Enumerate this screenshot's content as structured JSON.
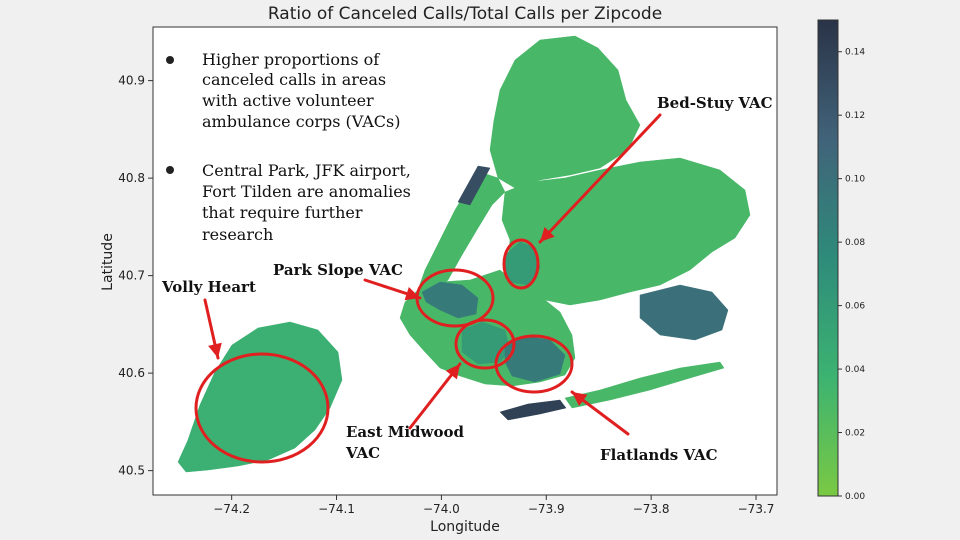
{
  "chart_data": {
    "type": "choropleth",
    "title": "Ratio of Canceled Calls/Total Calls per Zipcode",
    "xlabel": "Longitude",
    "ylabel": "Latitude",
    "xlim": [
      -74.275,
      -73.68
    ],
    "ylim": [
      40.475,
      40.955
    ],
    "x_ticks": [
      "−74.2",
      "−74.1",
      "−74.0",
      "−73.9",
      "−73.8",
      "−73.7"
    ],
    "x_tick_values": [
      -74.2,
      -74.1,
      -74.0,
      -73.9,
      -73.8,
      -73.7
    ],
    "y_ticks": [
      "40.5",
      "40.6",
      "40.7",
      "40.8",
      "40.9"
    ],
    "y_tick_values": [
      40.5,
      40.6,
      40.7,
      40.8,
      40.9
    ],
    "colorbar": {
      "min": 0.0,
      "max": 0.15,
      "ticks": [
        "0.00",
        "0.02",
        "0.04",
        "0.06",
        "0.08",
        "0.10",
        "0.12",
        "0.14"
      ],
      "tick_values": [
        0.0,
        0.02,
        0.04,
        0.06,
        0.08,
        0.1,
        0.12,
        0.14
      ],
      "colors": [
        "#7ac943",
        "#3cb371",
        "#2e8b7a",
        "#41637a",
        "#2a3347"
      ]
    },
    "regions": [
      {
        "id": "staten-island",
        "ratio": 0.04
      },
      {
        "id": "bronx",
        "ratio": 0.03
      },
      {
        "id": "manhattan",
        "ratio": 0.03
      },
      {
        "id": "central-park",
        "ratio": 0.13
      },
      {
        "id": "queens",
        "ratio": 0.03
      },
      {
        "id": "brooklyn",
        "ratio": 0.03
      },
      {
        "id": "bed-stuy",
        "ratio": 0.06
      },
      {
        "id": "park-slope",
        "ratio": 0.09
      },
      {
        "id": "east-midwood",
        "ratio": 0.06
      },
      {
        "id": "flatlands",
        "ratio": 0.09
      },
      {
        "id": "jfk-airport",
        "ratio": 0.1
      },
      {
        "id": "fort-tilden",
        "ratio": 0.14
      },
      {
        "id": "rockaway",
        "ratio": 0.03
      }
    ],
    "notes": [
      [
        "Higher proportions of",
        "canceled calls in areas",
        "with active volunteer",
        "ambulance corps (VACs)"
      ],
      [
        "Central Park, JFK airport,",
        "Fort Tilden are anomalies",
        "that require further",
        "research"
      ]
    ],
    "vac_labels": [
      {
        "lines": [
          "Bed-Stuy VAC"
        ]
      },
      {
        "lines": [
          "Park Slope VAC"
        ]
      },
      {
        "lines": [
          "Volly Heart"
        ]
      },
      {
        "lines": [
          "East Midwood",
          "VAC"
        ]
      },
      {
        "lines": [
          "Flatlands VAC"
        ]
      }
    ],
    "annotation_color": "#e02020"
  }
}
